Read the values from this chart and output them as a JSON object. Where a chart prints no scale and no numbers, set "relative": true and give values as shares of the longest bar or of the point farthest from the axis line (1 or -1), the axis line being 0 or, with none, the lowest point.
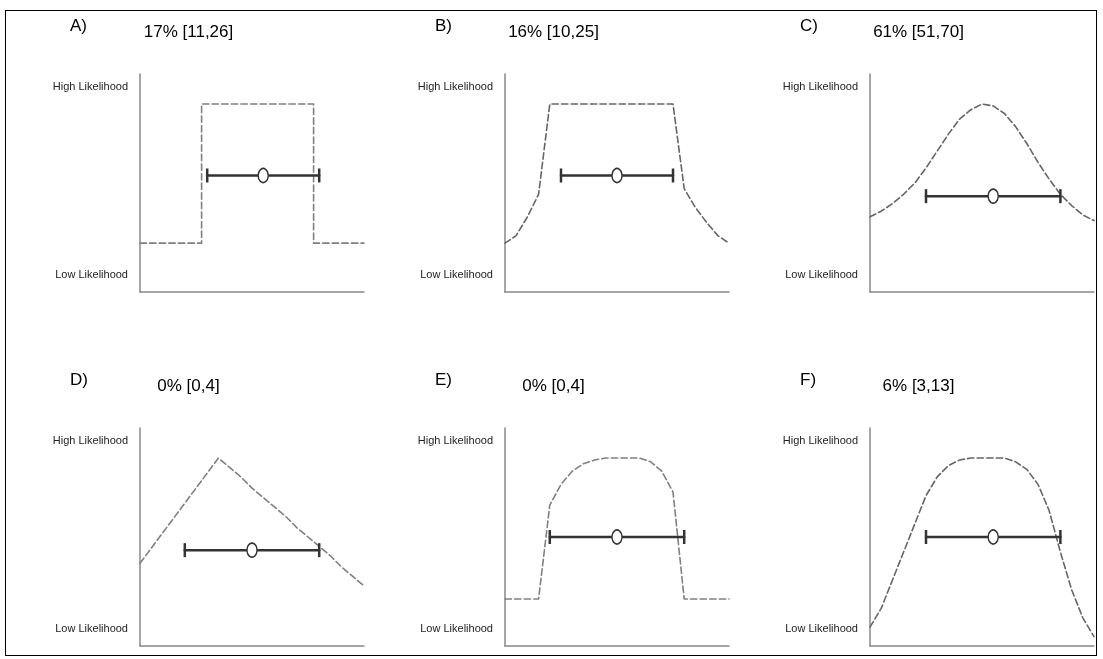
{
  "chart_data": [
    {
      "type": "line",
      "subtitle": "A)",
      "title": "17% [11,26]",
      "annotations": [
        "High Likelihood",
        "Low Likelihood"
      ],
      "relative": true,
      "categories": [
        null,
        null,
        null,
        null,
        null,
        null,
        null,
        null,
        null,
        null,
        null,
        null,
        null,
        null,
        null,
        null,
        null,
        null,
        null,
        null,
        null
      ],
      "series": [
        {
          "type": "step",
          "color": "#808080",
          "line_style": "dashed",
          "values": [
            0.26,
            0.26,
            0.26,
            0.26,
            0.26,
            0.26,
            1,
            1,
            1,
            1,
            1,
            1,
            1,
            1,
            1,
            1,
            0.26,
            0.26,
            0.26,
            0.26,
            0.26
          ]
        },
        {
          "color": "#333333",
          "line_style": "solid",
          "values": [
            null,
            null,
            null,
            null,
            null,
            null,
            0.62,
            0.62,
            0.62,
            0.62,
            0.62,
            0.62,
            0.62,
            0.62,
            0.62,
            0.62,
            0.62,
            null,
            null,
            null,
            null
          ]
        }
      ]
    },
    {
      "type": "line",
      "subtitle": "B)",
      "title": "16% [10,25]",
      "annotations": [
        "High Likelihood",
        "Low Likelihood"
      ],
      "relative": true,
      "categories": [
        null,
        null,
        null,
        null,
        null,
        null,
        null,
        null,
        null,
        null,
        null,
        null,
        null,
        null,
        null,
        null,
        null,
        null,
        null,
        null,
        null
      ],
      "series": [
        {
          "color": "#666666",
          "line_style": "dashed",
          "values": [
            0.26,
            0.3,
            0.4,
            0.52,
            1,
            1,
            1,
            1,
            1,
            1,
            1,
            1,
            1,
            1,
            1,
            1,
            0.55,
            0.45,
            0.37,
            0.3,
            0.26
          ]
        },
        {
          "color": "#333333",
          "line_style": "solid",
          "values": [
            null,
            null,
            null,
            null,
            null,
            0.62,
            0.62,
            0.62,
            0.62,
            0.62,
            0.62,
            0.62,
            0.62,
            0.62,
            0.62,
            0.62,
            null,
            null,
            null,
            null,
            null
          ]
        }
      ]
    },
    {
      "type": "line",
      "subtitle": "C)",
      "title": "61% [51,70]",
      "annotations": [
        "High Likelihood",
        "Low Likelihood"
      ],
      "relative": true,
      "categories": [
        null,
        null,
        null,
        null,
        null,
        null,
        null,
        null,
        null,
        null,
        null,
        null,
        null,
        null,
        null,
        null,
        null,
        null,
        null,
        null,
        null
      ],
      "series": [
        {
          "color": "#666666",
          "line_style": "dashed",
          "values": [
            0.4,
            0.43,
            0.47,
            0.52,
            0.58,
            0.66,
            0.75,
            0.84,
            0.92,
            0.97,
            1,
            0.99,
            0.95,
            0.88,
            0.79,
            0.69,
            0.6,
            0.52,
            0.46,
            0.41,
            0.38
          ]
        },
        {
          "color": "#333333",
          "line_style": "solid",
          "values": [
            null,
            null,
            null,
            null,
            null,
            0.51,
            0.51,
            0.51,
            0.51,
            0.51,
            0.51,
            0.51,
            0.51,
            0.51,
            0.51,
            0.51,
            0.51,
            0.51,
            null,
            null,
            null
          ]
        }
      ]
    },
    {
      "type": "line",
      "subtitle": "D)",
      "title": "0% [0,4]",
      "annotations": [
        "High Likelihood",
        "Low Likelihood"
      ],
      "relative": true,
      "categories": [
        null,
        null,
        null,
        null,
        null,
        null,
        null,
        null,
        null,
        null,
        null,
        null,
        null,
        null,
        null,
        null,
        null,
        null,
        null,
        null,
        null
      ],
      "series": [
        {
          "color": "#808080",
          "line_style": "dashed",
          "values": [
            0.44,
            0.52,
            0.6,
            0.68,
            0.76,
            0.84,
            0.92,
            1,
            0.95,
            0.9,
            0.84,
            0.79,
            0.74,
            0.69,
            0.63,
            0.58,
            0.53,
            0.48,
            0.42,
            0.37,
            0.32
          ]
        },
        {
          "color": "#333333",
          "line_style": "solid",
          "values": [
            null,
            null,
            null,
            null,
            0.51,
            0.51,
            0.51,
            0.51,
            0.51,
            0.51,
            0.51,
            0.51,
            0.51,
            0.51,
            0.51,
            0.51,
            0.51,
            null,
            null,
            null,
            null
          ]
        }
      ]
    },
    {
      "type": "line",
      "subtitle": "E)",
      "title": "0% [0,4]",
      "annotations": [
        "High Likelihood",
        "Low Likelihood"
      ],
      "relative": true,
      "categories": [
        null,
        null,
        null,
        null,
        null,
        null,
        null,
        null,
        null,
        null,
        null,
        null,
        null,
        null,
        null,
        null,
        null,
        null,
        null,
        null,
        null
      ],
      "series": [
        {
          "color": "#808080",
          "line_style": "dashed",
          "values": [
            0.25,
            0.25,
            0.25,
            0.25,
            0.75,
            0.86,
            0.93,
            0.97,
            0.99,
            1,
            1,
            1,
            1,
            0.98,
            0.93,
            0.82,
            0.25,
            0.25,
            0.25,
            0.25,
            0.25
          ]
        },
        {
          "color": "#333333",
          "line_style": "solid",
          "values": [
            null,
            null,
            null,
            null,
            0.58,
            0.58,
            0.58,
            0.58,
            0.58,
            0.58,
            0.58,
            0.58,
            0.58,
            0.58,
            0.58,
            0.58,
            0.58,
            null,
            null,
            null,
            null
          ]
        }
      ]
    },
    {
      "type": "line",
      "subtitle": "F)",
      "title": "6% [3,13]",
      "annotations": [
        "High Likelihood",
        "Low Likelihood"
      ],
      "relative": true,
      "categories": [
        null,
        null,
        null,
        null,
        null,
        null,
        null,
        null,
        null,
        null,
        null,
        null,
        null,
        null,
        null,
        null,
        null,
        null,
        null,
        null,
        null
      ],
      "series": [
        {
          "color": "#666666",
          "line_style": "dashed",
          "values": [
            0.1,
            0.2,
            0.35,
            0.5,
            0.65,
            0.8,
            0.9,
            0.96,
            0.99,
            1,
            1,
            1,
            1,
            0.98,
            0.94,
            0.86,
            0.72,
            0.5,
            0.3,
            0.15,
            0.05
          ]
        },
        {
          "color": "#333333",
          "line_style": "solid",
          "values": [
            null,
            null,
            null,
            null,
            null,
            0.58,
            0.58,
            0.58,
            0.58,
            0.58,
            0.58,
            0.58,
            0.58,
            0.58,
            0.58,
            0.58,
            0.58,
            0.58,
            null,
            null,
            null
          ]
        }
      ]
    }
  ]
}
